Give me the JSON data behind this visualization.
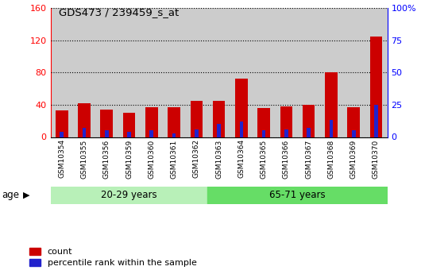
{
  "title": "GDS473 / 239459_s_at",
  "samples": [
    "GSM10354",
    "GSM10355",
    "GSM10356",
    "GSM10359",
    "GSM10360",
    "GSM10361",
    "GSM10362",
    "GSM10363",
    "GSM10364",
    "GSM10365",
    "GSM10366",
    "GSM10367",
    "GSM10368",
    "GSM10369",
    "GSM10370"
  ],
  "count_values": [
    33,
    42,
    34,
    30,
    37,
    37,
    45,
    45,
    73,
    36,
    38,
    40,
    80,
    37,
    125
  ],
  "percentile_values": [
    4,
    7,
    5,
    4,
    5,
    3,
    6,
    10,
    12,
    5,
    6,
    7,
    13,
    5,
    25
  ],
  "group1_label": "20-29 years",
  "group2_label": "65-71 years",
  "group1_count": 7,
  "group2_count": 8,
  "ylim_left": [
    0,
    160
  ],
  "ylim_right": [
    0,
    100
  ],
  "yticks_left": [
    0,
    40,
    80,
    120,
    160
  ],
  "yticks_right": [
    0,
    25,
    50,
    75,
    100
  ],
  "count_color": "#cc0000",
  "percentile_color": "#2222cc",
  "group1_bg": "#b8f0b8",
  "group2_bg": "#66dd66",
  "bar_bg": "#cccccc",
  "legend_count": "count",
  "legend_percentile": "percentile rank within the sample",
  "bar_width": 0.55
}
